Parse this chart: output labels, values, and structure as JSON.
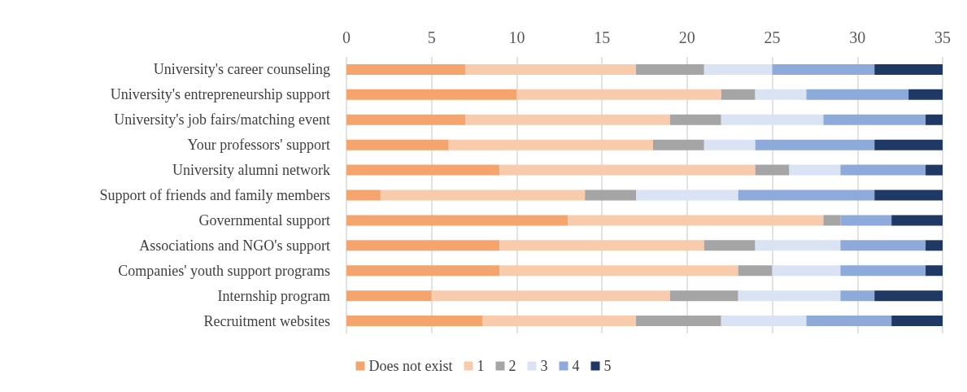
{
  "chart_data": {
    "type": "bar",
    "orientation": "horizontal",
    "stacked": true,
    "categories": [
      "University's career counseling",
      "University's entrepreneurship support",
      "University's job fairs/matching event",
      "Your professors' support",
      "University alumni network",
      "Support of friends and family members",
      "Governmental support",
      "Associations and NGO's support",
      "Companies' youth support programs",
      "Internship program",
      "Recruitment websites"
    ],
    "series": [
      {
        "name": "Does not exist",
        "color": "#f4a46c",
        "values": [
          7,
          10,
          7,
          6,
          9,
          2,
          13,
          9,
          9,
          5,
          8
        ]
      },
      {
        "name": "1",
        "color": "#f8cbad",
        "values": [
          10,
          12,
          12,
          12,
          15,
          12,
          15,
          12,
          14,
          14,
          9
        ]
      },
      {
        "name": "2",
        "color": "#a5a5a5",
        "values": [
          4,
          2,
          3,
          3,
          2,
          3,
          1,
          3,
          2,
          4,
          5
        ]
      },
      {
        "name": "3",
        "color": "#dae3f3",
        "values": [
          4,
          3,
          6,
          3,
          3,
          6,
          0,
          5,
          4,
          6,
          5
        ]
      },
      {
        "name": "4",
        "color": "#8eaadb",
        "values": [
          6,
          6,
          6,
          7,
          5,
          8,
          3,
          5,
          5,
          2,
          5
        ]
      },
      {
        "name": "5",
        "color": "#203864",
        "values": [
          4,
          2,
          1,
          4,
          1,
          4,
          3,
          1,
          1,
          4,
          3
        ]
      }
    ],
    "xlim": [
      0,
      35
    ],
    "xticks": [
      0,
      5,
      10,
      15,
      20,
      25,
      30,
      35
    ],
    "grid": "x",
    "legend": "bottom"
  }
}
